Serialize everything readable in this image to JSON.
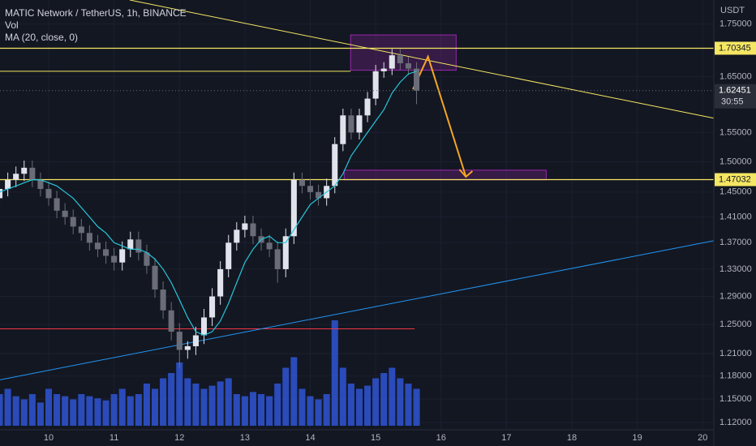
{
  "chart_data": {
    "type": "candlestick",
    "title": "MATIC Network / TetherUS, 1h, BINANCE",
    "volume_label": "Vol",
    "currency": "USDT",
    "log": true,
    "grid": true,
    "xlim": [
      9.256,
      20.17
    ],
    "ylim": [
      1.111,
      1.798
    ],
    "xticks": [
      10,
      11,
      12,
      13,
      14,
      15,
      16,
      17,
      18,
      19,
      20
    ],
    "yticks": [
      {
        "value": 1.75,
        "label": "1.75000"
      },
      {
        "value": 1.65,
        "label": "1.65000"
      },
      {
        "value": 1.55,
        "label": "1.55000"
      },
      {
        "value": 1.5,
        "label": "1.50000"
      },
      {
        "value": 1.45,
        "label": "1.45000"
      },
      {
        "value": 1.41,
        "label": "1.41000"
      },
      {
        "value": 1.37,
        "label": "1.37000"
      },
      {
        "value": 1.33,
        "label": "1.33000"
      },
      {
        "value": 1.29,
        "label": "1.29000"
      },
      {
        "value": 1.25,
        "label": "1.25000"
      },
      {
        "value": 1.21,
        "label": "1.21000"
      },
      {
        "value": 1.18,
        "label": "1.18000"
      },
      {
        "value": 1.15,
        "label": "1.15000"
      },
      {
        "value": 1.12,
        "label": "1.12000"
      }
    ],
    "up_color": "#e0e3eb",
    "down_color": "#6a6d78",
    "volume_color": "#2f55d4",
    "x": [
      9.25,
      9.375,
      9.5,
      9.625,
      9.75,
      9.875,
      10.0,
      10.125,
      10.25,
      10.375,
      10.5,
      10.625,
      10.75,
      10.875,
      11.0,
      11.125,
      11.25,
      11.375,
      11.5,
      11.625,
      11.75,
      11.875,
      12.0,
      12.125,
      12.25,
      12.375,
      12.5,
      12.625,
      12.75,
      12.875,
      13.0,
      13.125,
      13.25,
      13.375,
      13.5,
      13.625,
      13.75,
      13.875,
      14.0,
      14.125,
      14.25,
      14.375,
      14.5,
      14.625,
      14.75,
      14.875,
      15.0,
      15.125,
      15.25,
      15.375,
      15.5,
      15.625
    ],
    "open": [
      1.44,
      1.455,
      1.47,
      1.48,
      1.49,
      1.47,
      1.455,
      1.44,
      1.42,
      1.41,
      1.395,
      1.385,
      1.37,
      1.36,
      1.35,
      1.34,
      1.36,
      1.375,
      1.355,
      1.335,
      1.3,
      1.27,
      1.24,
      1.215,
      1.22,
      1.235,
      1.26,
      1.29,
      1.33,
      1.37,
      1.39,
      1.4,
      1.38,
      1.37,
      1.36,
      1.33,
      1.38,
      1.47,
      1.46,
      1.45,
      1.44,
      1.46,
      1.53,
      1.58,
      1.55,
      1.58,
      1.61,
      1.66,
      1.665,
      1.69,
      1.675,
      1.665
    ],
    "high": [
      1.467,
      1.482,
      1.492,
      1.502,
      1.502,
      1.482,
      1.467,
      1.452,
      1.432,
      1.422,
      1.407,
      1.397,
      1.382,
      1.372,
      1.362,
      1.372,
      1.387,
      1.387,
      1.367,
      1.347,
      1.312,
      1.282,
      1.252,
      1.227,
      1.247,
      1.272,
      1.302,
      1.342,
      1.382,
      1.402,
      1.412,
      1.412,
      1.392,
      1.382,
      1.372,
      1.392,
      1.482,
      1.482,
      1.472,
      1.462,
      1.472,
      1.542,
      1.592,
      1.592,
      1.592,
      1.622,
      1.672,
      1.677,
      1.702,
      1.702,
      1.687,
      1.677
    ],
    "low": [
      1.428,
      1.443,
      1.458,
      1.468,
      1.458,
      1.443,
      1.428,
      1.408,
      1.398,
      1.383,
      1.373,
      1.358,
      1.348,
      1.338,
      1.328,
      1.328,
      1.348,
      1.343,
      1.323,
      1.288,
      1.258,
      1.228,
      1.19,
      1.203,
      1.208,
      1.223,
      1.248,
      1.278,
      1.318,
      1.358,
      1.378,
      1.368,
      1.358,
      1.348,
      1.31,
      1.318,
      1.368,
      1.448,
      1.438,
      1.428,
      1.428,
      1.448,
      1.518,
      1.538,
      1.538,
      1.568,
      1.598,
      1.648,
      1.653,
      1.663,
      1.653,
      1.6
    ],
    "close": [
      1.455,
      1.47,
      1.48,
      1.49,
      1.47,
      1.455,
      1.44,
      1.42,
      1.41,
      1.395,
      1.385,
      1.37,
      1.36,
      1.35,
      1.34,
      1.36,
      1.375,
      1.355,
      1.335,
      1.3,
      1.27,
      1.24,
      1.215,
      1.22,
      1.235,
      1.26,
      1.29,
      1.33,
      1.37,
      1.39,
      1.4,
      1.38,
      1.37,
      1.36,
      1.33,
      1.38,
      1.47,
      1.46,
      1.45,
      1.44,
      1.46,
      1.53,
      1.58,
      1.55,
      1.58,
      1.61,
      1.66,
      1.665,
      1.69,
      1.675,
      1.665,
      1.62451
    ],
    "volume": [
      30,
      35,
      28,
      25,
      30,
      22,
      35,
      30,
      28,
      25,
      30,
      28,
      26,
      24,
      30,
      35,
      28,
      30,
      40,
      35,
      45,
      50,
      60,
      45,
      40,
      35,
      38,
      42,
      45,
      30,
      28,
      32,
      30,
      28,
      40,
      55,
      65,
      35,
      28,
      25,
      30,
      100,
      55,
      40,
      35,
      38,
      45,
      50,
      55,
      45,
      40,
      35
    ],
    "ma": {
      "label": "MA (20, close, 0)",
      "color": "#26c6da",
      "values": [
        1.45,
        1.455,
        1.46,
        1.465,
        1.47,
        1.47,
        1.465,
        1.46,
        1.45,
        1.44,
        1.425,
        1.41,
        1.395,
        1.385,
        1.37,
        1.365,
        1.36,
        1.36,
        1.355,
        1.345,
        1.33,
        1.31,
        1.285,
        1.26,
        1.24,
        1.235,
        1.24,
        1.255,
        1.28,
        1.31,
        1.34,
        1.36,
        1.375,
        1.38,
        1.37,
        1.37,
        1.39,
        1.41,
        1.43,
        1.44,
        1.45,
        1.46,
        1.48,
        1.51,
        1.53,
        1.55,
        1.57,
        1.59,
        1.62,
        1.64,
        1.655,
        1.66
      ]
    },
    "levels": [
      {
        "value": 1.70345,
        "color": "#f5e663"
      },
      {
        "value": 1.47032,
        "color": "#f5e663"
      }
    ],
    "countdown": "30:55",
    "segments": [
      {
        "color": "#f5e663",
        "x": [
          9.256,
          14.617
        ],
        "y": [
          1.66,
          1.66
        ]
      },
      {
        "color": "#f23645",
        "x": [
          9.256,
          15.596
        ],
        "y": [
          1.244,
          1.244
        ]
      },
      {
        "color": "#f5e663",
        "x": [
          11.24,
          20.17
        ],
        "y": [
          1.798,
          1.575
        ]
      },
      {
        "color": "#2196f3",
        "x": [
          9.256,
          20.17
        ],
        "y": [
          1.175,
          1.373
        ]
      },
      {
        "color": "#f5a623",
        "x": [
          15.57,
          15.8,
          16.38
        ],
        "y": [
          1.627,
          1.6875,
          1.475
        ]
      }
    ],
    "boxes": [
      {
        "color": "#9c27b0",
        "x": [
          14.617,
          16.23
        ],
        "y": [
          1.662,
          1.729
        ]
      },
      {
        "color": "#9c27b0",
        "x": [
          14.518,
          17.607
        ],
        "y": [
          1.47,
          1.486
        ]
      }
    ]
  }
}
